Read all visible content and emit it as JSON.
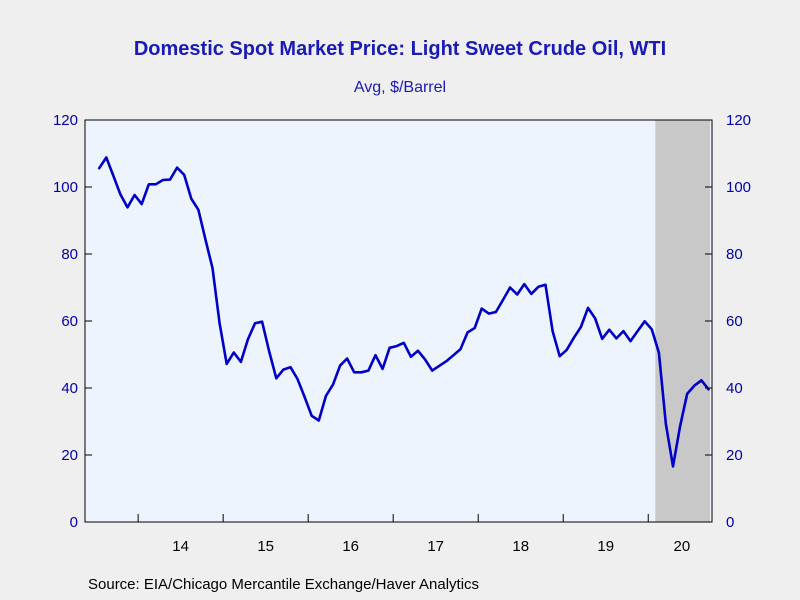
{
  "chart_data": {
    "type": "line",
    "title": "Domestic Spot Market Price: Light Sweet Crude Oil, WTI",
    "subtitle": "Avg, $/Barrel",
    "source": "Source:  EIA/Chicago Mercantile Exchange/Haver Analytics",
    "ylim": [
      0,
      120
    ],
    "y_ticks": [
      0,
      20,
      40,
      60,
      80,
      100,
      120
    ],
    "y_tick_labels": [
      "0",
      "20",
      "40",
      "60",
      "80",
      "100",
      "120"
    ],
    "x_tick_labels": [
      "14",
      "15",
      "16",
      "17",
      "18",
      "19",
      "20"
    ],
    "grid": false,
    "recession_shading": {
      "start": "2020-02",
      "end": "2020-09",
      "color": "#c8c8c8"
    },
    "series": [
      {
        "color": "#0000c8",
        "x": [
          "2013-07",
          "2013-08",
          "2013-09",
          "2013-10",
          "2013-11",
          "2013-12",
          "2014-01",
          "2014-02",
          "2014-03",
          "2014-04",
          "2014-05",
          "2014-06",
          "2014-07",
          "2014-08",
          "2014-09",
          "2014-10",
          "2014-11",
          "2014-12",
          "2015-01",
          "2015-02",
          "2015-03",
          "2015-04",
          "2015-05",
          "2015-06",
          "2015-07",
          "2015-08",
          "2015-09",
          "2015-10",
          "2015-11",
          "2015-12",
          "2016-01",
          "2016-02",
          "2016-03",
          "2016-04",
          "2016-05",
          "2016-06",
          "2016-07",
          "2016-08",
          "2016-09",
          "2016-10",
          "2016-11",
          "2016-12",
          "2017-01",
          "2017-02",
          "2017-03",
          "2017-04",
          "2017-05",
          "2017-06",
          "2017-07",
          "2017-08",
          "2017-09",
          "2017-10",
          "2017-11",
          "2017-12",
          "2018-01",
          "2018-02",
          "2018-03",
          "2018-04",
          "2018-05",
          "2018-06",
          "2018-07",
          "2018-08",
          "2018-09",
          "2018-10",
          "2018-11",
          "2018-12",
          "2019-01",
          "2019-02",
          "2019-03",
          "2019-04",
          "2019-05",
          "2019-06",
          "2019-07",
          "2019-08",
          "2019-09",
          "2019-10",
          "2019-11",
          "2019-12",
          "2020-01",
          "2020-02",
          "2020-03",
          "2020-04",
          "2020-05",
          "2020-06",
          "2020-07",
          "2020-08",
          "2020-09"
        ],
        "values": [
          105.6,
          108.8,
          103.4,
          97.8,
          93.9,
          97.6,
          94.9,
          100.8,
          100.8,
          102.1,
          102.2,
          105.8,
          103.6,
          96.5,
          93.2,
          84.4,
          75.8,
          59.3,
          47.2,
          50.6,
          47.8,
          54.5,
          59.3,
          59.8,
          50.9,
          42.9,
          45.5,
          46.2,
          42.7,
          37.3,
          31.7,
          30.3,
          37.6,
          41.0,
          46.7,
          48.8,
          44.7,
          44.7,
          45.2,
          49.8,
          45.7,
          52.0,
          52.5,
          53.5,
          49.3,
          51.1,
          48.5,
          45.2,
          46.6,
          48.0,
          49.8,
          51.6,
          56.6,
          57.9,
          63.7,
          62.2,
          62.7,
          66.3,
          70.0,
          67.9,
          71.0,
          68.1,
          70.2,
          70.8,
          57.0,
          49.5,
          51.4,
          55.0,
          58.2,
          63.9,
          60.8,
          54.7,
          57.4,
          54.8,
          57.0,
          54.0,
          57.0,
          59.9,
          57.5,
          50.5,
          29.2,
          16.6,
          28.6,
          38.3,
          40.7,
          42.3,
          39.6
        ]
      }
    ]
  }
}
